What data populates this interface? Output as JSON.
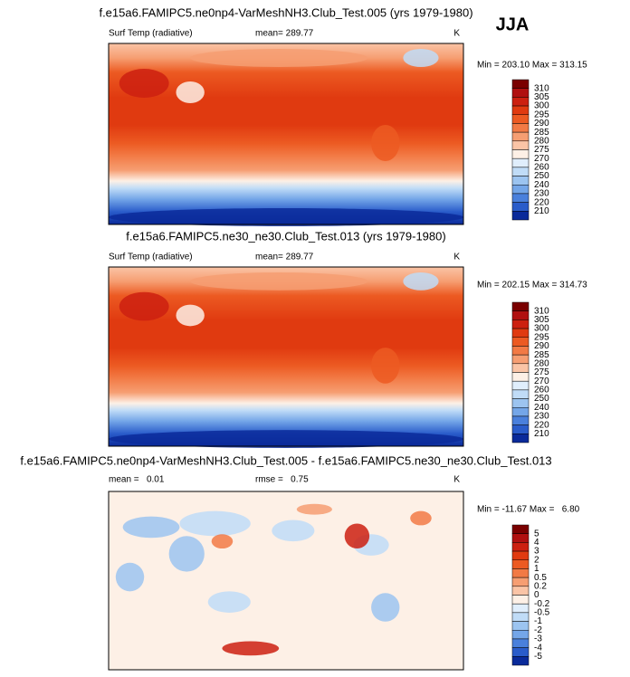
{
  "header": {
    "season": "JJA"
  },
  "panels": [
    {
      "title": "f.e15a6.FAMIPC5.ne0np4-VarMeshNH3.Club_Test.005 (yrs 1979-1980)",
      "variable": "Surf Temp (radiative)",
      "stat": "mean= 289.77",
      "units": "K",
      "minmax": "Min = 203.10 Max = 313.15",
      "colorbar": {
        "labels": [
          "310",
          "305",
          "300",
          "295",
          "290",
          "285",
          "280",
          "275",
          "270",
          "260",
          "250",
          "240",
          "230",
          "220",
          "210"
        ],
        "colors": [
          "#7a0000",
          "#b01010",
          "#cc2010",
          "#e03a10",
          "#ec5a22",
          "#f27a45",
          "#f69e72",
          "#fac4a6",
          "#fdf0e6",
          "#e0eefc",
          "#c0dcf7",
          "#9cc4f0",
          "#74a6e8",
          "#4a80dc",
          "#2a5cca",
          "#0a2a9a"
        ]
      }
    },
    {
      "title": "f.e15a6.FAMIPC5.ne30_ne30.Club_Test.013 (yrs 1979-1980)",
      "variable": "Surf Temp (radiative)",
      "stat": "mean= 289.77",
      "units": "K",
      "minmax": "Min = 202.15 Max = 314.73",
      "colorbar": {
        "labels": [
          "310",
          "305",
          "300",
          "295",
          "290",
          "285",
          "280",
          "275",
          "270",
          "260",
          "250",
          "240",
          "230",
          "220",
          "210"
        ],
        "colors": [
          "#7a0000",
          "#b01010",
          "#cc2010",
          "#e03a10",
          "#ec5a22",
          "#f27a45",
          "#f69e72",
          "#fac4a6",
          "#fdf0e6",
          "#e0eefc",
          "#c0dcf7",
          "#9cc4f0",
          "#74a6e8",
          "#4a80dc",
          "#2a5cca",
          "#0a2a9a"
        ]
      }
    },
    {
      "title": "f.e15a6.FAMIPC5.ne0np4-VarMeshNH3.Club_Test.005 - f.e15a6.FAMIPC5.ne30_ne30.Club_Test.013",
      "variable": "mean =   0.01",
      "stat": "rmse =   0.75",
      "units": "K",
      "minmax": "Min = -11.67 Max =   6.80",
      "colorbar": {
        "labels": [
          "5",
          "4",
          "3",
          "2",
          "1",
          "0.5",
          "0.2",
          "0",
          "-0.2",
          "-0.5",
          "-1",
          "-2",
          "-3",
          "-4",
          "-5"
        ],
        "colors": [
          "#7a0000",
          "#b01010",
          "#cc2010",
          "#e03a10",
          "#ec5a22",
          "#f27a45",
          "#f69e72",
          "#fac4a6",
          "#fdf0e6",
          "#e0eefc",
          "#c0dcf7",
          "#9cc4f0",
          "#74a6e8",
          "#4a80dc",
          "#2a5cca",
          "#0a2a9a"
        ]
      }
    }
  ]
}
